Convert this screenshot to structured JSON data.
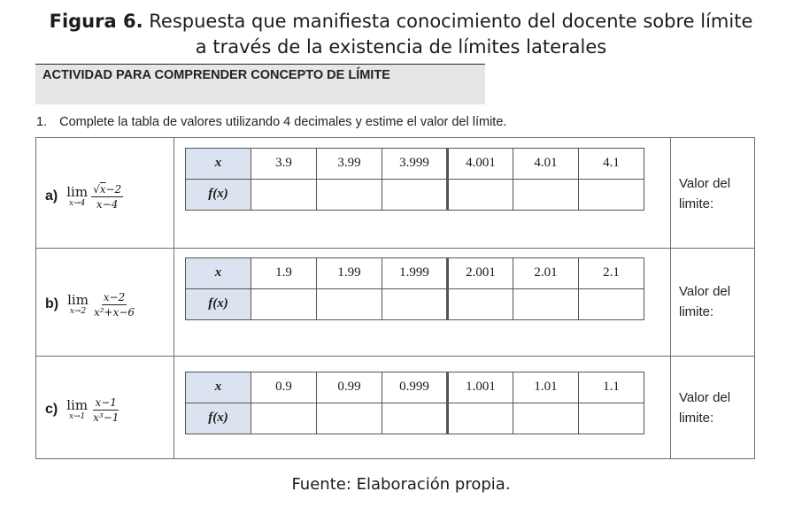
{
  "caption": {
    "label": "Figura 6.",
    "text_line1": " Respuesta que manifiesta conocimiento del docente sobre límite",
    "text_line2": "a través de la existencia de límites laterales"
  },
  "activity": {
    "title": "ACTIVIDAD PARA COMPRENDER CONCEPTO DE LÍMITE"
  },
  "instruction": {
    "number": "1.",
    "text": "Complete la tabla de valores utilizando 4 decimales y estime el valor del límite."
  },
  "rows": [
    {
      "letter": "a)",
      "lim_word": "lim",
      "lim_sub": "x→4",
      "numerator_root": "x",
      "numerator_rest": "−2",
      "denominator": "x−4",
      "x_header": "x",
      "f_header": "f(x)",
      "x_values": [
        "3.9",
        "3.99",
        "3.999",
        "4.001",
        "4.01",
        "4.1"
      ],
      "valor_label_1": "Valor del",
      "valor_label_2": "limite:"
    },
    {
      "letter": "b)",
      "lim_word": "lim",
      "lim_sub": "x→2",
      "numerator": "x−2",
      "denominator": "x²+x−6",
      "x_header": "x",
      "f_header": "f(x)",
      "x_values": [
        "1.9",
        "1.99",
        "1.999",
        "2.001",
        "2.01",
        "2.1"
      ],
      "valor_label_1": "Valor del",
      "valor_label_2": "limite:"
    },
    {
      "letter": "c)",
      "lim_word": "lim",
      "lim_sub": "x→1",
      "numerator": "x−1",
      "denominator": "x³−1",
      "x_header": "x",
      "f_header": "f(x)",
      "x_values": [
        "0.9",
        "0.99",
        "0.999",
        "1.001",
        "1.01",
        "1.1"
      ],
      "valor_label_1": "Valor del",
      "valor_label_2": "limite:"
    }
  ],
  "footer": {
    "text": "Fuente: Elaboración propia."
  }
}
